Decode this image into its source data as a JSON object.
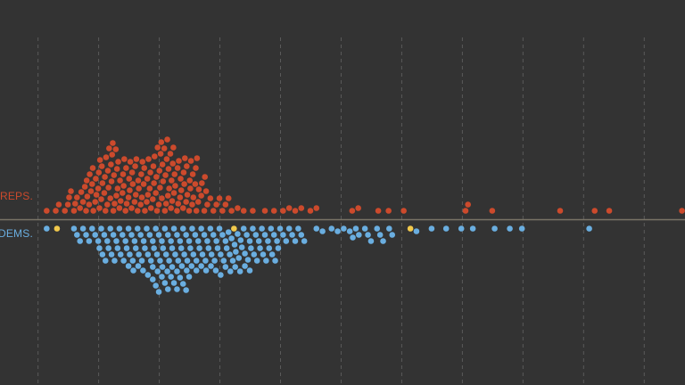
{
  "chart_data": {
    "type": "beeswarm",
    "xlim": [
      -0.62,
      10.68
    ],
    "xticks": [
      0,
      1,
      2,
      3,
      4,
      5,
      6,
      7,
      8,
      9,
      10
    ],
    "grid": true,
    "series": [
      {
        "name": "REPS.",
        "color": "#cc4a2c",
        "side": "up",
        "values": [
          0.15,
          0.3,
          0.35,
          0.45,
          0.5,
          0.52,
          0.55,
          0.6,
          0.62,
          0.65,
          0.7,
          0.72,
          0.75,
          0.78,
          0.8,
          0.82,
          0.85,
          0.88,
          0.9,
          0.92,
          0.95,
          0.97,
          1.0,
          1.02,
          1.05,
          1.07,
          1.1,
          1.12,
          1.15,
          1.17,
          1.2,
          1.22,
          1.25,
          1.27,
          1.3,
          1.32,
          1.35,
          1.37,
          1.4,
          1.42,
          1.45,
          1.47,
          1.5,
          1.52,
          1.55,
          1.57,
          1.6,
          1.62,
          1.65,
          1.67,
          1.7,
          1.72,
          1.75,
          1.77,
          1.8,
          1.82,
          1.85,
          1.87,
          1.9,
          1.92,
          1.95,
          1.97,
          2.0,
          2.02,
          2.05,
          2.07,
          2.1,
          2.12,
          2.15,
          2.17,
          2.2,
          2.22,
          2.25,
          2.27,
          2.3,
          2.32,
          2.35,
          2.37,
          2.4,
          2.42,
          2.45,
          2.47,
          2.5,
          2.52,
          2.55,
          2.57,
          2.6,
          2.62,
          2.65,
          2.7,
          2.75,
          2.8,
          2.85,
          2.9,
          2.95,
          3.0,
          3.05,
          3.1,
          3.15,
          3.2,
          3.3,
          3.4,
          3.55,
          0.81,
          0.86,
          0.91,
          0.96,
          1.01,
          1.06,
          1.11,
          1.16,
          1.21,
          1.26,
          1.31,
          1.36,
          1.41,
          1.46,
          1.51,
          1.56,
          1.61,
          1.66,
          1.71,
          1.76,
          1.81,
          1.86,
          1.91,
          1.96,
          2.01,
          2.06,
          2.11,
          2.16,
          2.21,
          2.26,
          2.31,
          2.36,
          2.41,
          2.46,
          2.51,
          2.56,
          2.61,
          2.66,
          2.71,
          2.76,
          1.03,
          1.13,
          1.23,
          1.33,
          1.43,
          1.53,
          1.63,
          1.73,
          1.83,
          1.93,
          2.03,
          2.13,
          2.23,
          2.33,
          2.43,
          2.53,
          2.63,
          1.18,
          1.24,
          1.29,
          1.98,
          2.04,
          2.09,
          2.14,
          2.19,
          2.24,
          2.78,
          3.75,
          3.9,
          4.05,
          4.15,
          4.25,
          4.35,
          4.5,
          4.6,
          5.19,
          5.29,
          5.62,
          5.79,
          6.04,
          7.06,
          7.1,
          7.5,
          8.62,
          9.19,
          9.43,
          10.63
        ]
      },
      {
        "name": "DEMS.",
        "color": "#6aaee0",
        "side": "down",
        "highlight": {
          "color": "#f2c94c",
          "values": [
            0.32,
            3.24,
            6.15
          ]
        },
        "values": [
          0.15,
          0.6,
          0.65,
          0.7,
          0.75,
          0.8,
          0.85,
          0.9,
          0.95,
          1.0,
          1.05,
          1.1,
          1.15,
          1.2,
          1.25,
          1.3,
          1.35,
          1.4,
          1.45,
          1.5,
          1.55,
          1.6,
          1.65,
          1.7,
          1.75,
          1.8,
          1.85,
          1.9,
          1.95,
          2.0,
          2.05,
          2.1,
          2.15,
          2.2,
          2.25,
          2.3,
          2.35,
          2.4,
          2.45,
          2.5,
          2.55,
          2.6,
          2.65,
          2.7,
          2.75,
          2.8,
          2.85,
          2.9,
          2.95,
          3.0,
          3.05,
          3.1,
          3.15,
          3.2,
          3.25,
          3.3,
          3.35,
          3.4,
          3.45,
          3.5,
          3.55,
          3.6,
          3.65,
          3.7,
          3.75,
          3.8,
          3.85,
          3.9,
          3.95,
          4.0,
          4.05,
          4.1,
          4.15,
          4.2,
          4.25,
          4.3,
          4.35,
          4.4,
          1.02,
          1.07,
          1.12,
          1.17,
          1.22,
          1.27,
          1.32,
          1.37,
          1.42,
          1.47,
          1.52,
          1.57,
          1.62,
          1.67,
          1.72,
          1.77,
          1.82,
          1.87,
          1.92,
          1.97,
          2.02,
          2.07,
          2.12,
          2.17,
          2.22,
          2.27,
          2.32,
          2.37,
          2.42,
          2.47,
          2.52,
          2.57,
          2.62,
          2.67,
          2.72,
          2.77,
          2.82,
          2.87,
          2.92,
          2.97,
          3.02,
          3.07,
          3.12,
          3.17,
          3.22,
          3.27,
          3.32,
          3.37,
          3.42,
          3.47,
          3.52,
          3.57,
          3.62,
          3.67,
          3.72,
          3.77,
          3.82,
          3.87,
          3.92,
          3.97,
          1.5,
          1.58,
          1.66,
          1.74,
          1.82,
          1.9,
          1.98,
          2.06,
          2.14,
          2.22,
          2.3,
          2.38,
          2.46,
          2.54,
          2.62,
          2.7,
          2.78,
          2.86,
          2.94,
          3.02,
          3.1,
          3.18,
          3.26,
          3.34,
          3.42,
          3.5,
          1.9,
          1.95,
          2.0,
          2.05,
          2.1,
          2.15,
          2.2,
          2.25,
          2.3,
          2.35,
          2.4,
          2.45,
          2.5,
          4.6,
          4.7,
          4.85,
          4.95,
          5.05,
          5.15,
          5.2,
          5.25,
          5.3,
          5.4,
          5.45,
          5.5,
          5.6,
          5.65,
          5.7,
          5.8,
          5.85,
          6.25,
          6.5,
          6.74,
          6.99,
          7.18,
          7.54,
          7.79,
          7.99,
          9.1
        ]
      }
    ]
  }
}
